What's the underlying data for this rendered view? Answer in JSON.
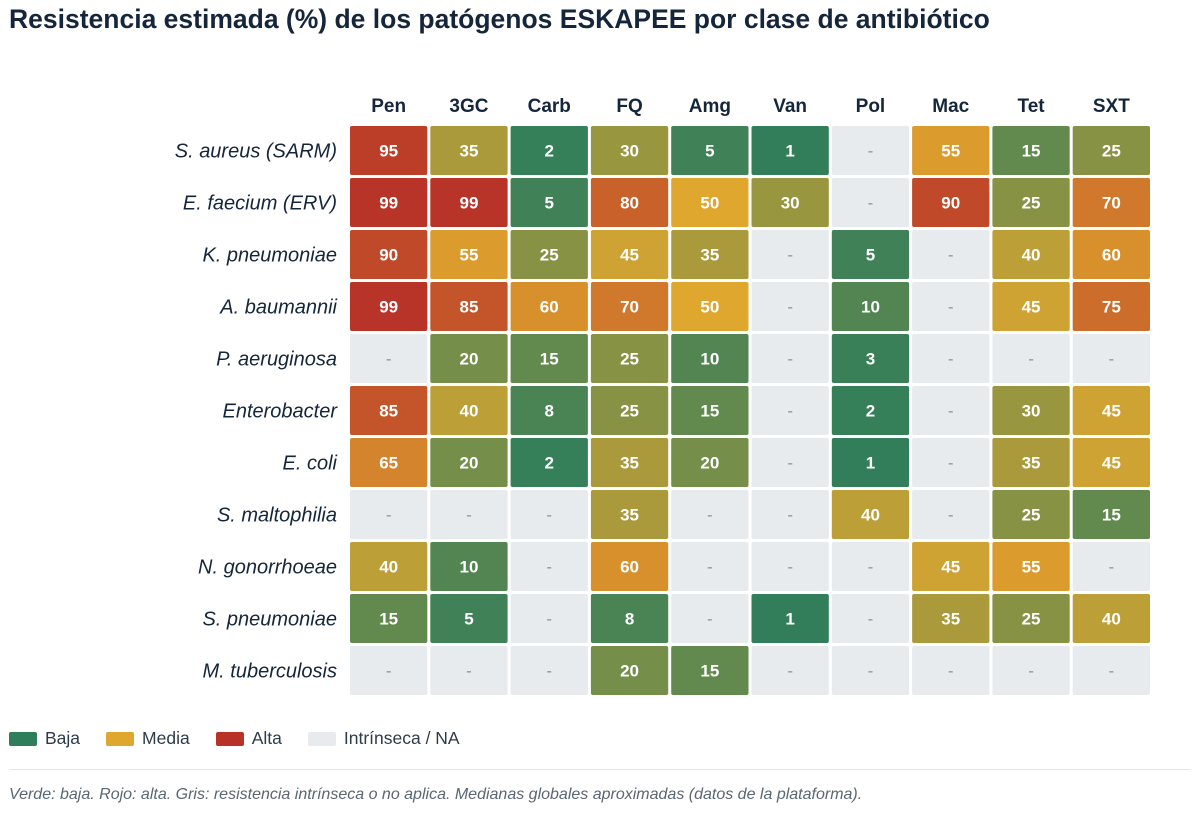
{
  "chart_data": {
    "type": "heatmap",
    "title": "Resistencia estimada (%) de los patógenos ESKAPEE por clase de antibiótico",
    "columns": [
      "Pen",
      "3GC",
      "Carb",
      "FQ",
      "Amg",
      "Van",
      "Pol",
      "Mac",
      "Tet",
      "SXT"
    ],
    "rows": [
      "S. aureus (SARM)",
      "E. faecium (ERV)",
      "K. pneumoniae",
      "A. baumannii",
      "P. aeruginosa",
      "Enterobacter",
      "E. coli",
      "S. maltophilia",
      "N. gonorrhoeae",
      "S. pneumoniae",
      "M. tuberculosis"
    ],
    "values": [
      [
        95,
        35,
        2,
        30,
        5,
        1,
        null,
        55,
        15,
        25
      ],
      [
        99,
        99,
        5,
        80,
        50,
        30,
        null,
        90,
        25,
        70
      ],
      [
        90,
        55,
        25,
        45,
        35,
        null,
        5,
        null,
        40,
        60
      ],
      [
        99,
        85,
        60,
        70,
        50,
        null,
        10,
        null,
        45,
        75
      ],
      [
        null,
        20,
        15,
        25,
        10,
        null,
        3,
        null,
        null,
        null
      ],
      [
        85,
        40,
        8,
        25,
        15,
        null,
        2,
        null,
        30,
        45
      ],
      [
        65,
        20,
        2,
        35,
        20,
        null,
        1,
        null,
        35,
        45
      ],
      [
        null,
        null,
        null,
        35,
        null,
        null,
        40,
        null,
        25,
        15
      ],
      [
        40,
        10,
        null,
        60,
        null,
        null,
        null,
        45,
        55,
        null
      ],
      [
        15,
        5,
        null,
        8,
        null,
        1,
        null,
        35,
        25,
        40
      ],
      [
        null,
        null,
        null,
        20,
        15,
        null,
        null,
        null,
        null,
        null
      ]
    ],
    "na_label": "-",
    "colors": {
      "low": "#2e7d5b",
      "mid": "#e0a72e",
      "high": "#b83228",
      "na": "#e8ebee"
    }
  },
  "legend": [
    {
      "label": "Baja",
      "color": "#2e7d5b"
    },
    {
      "label": "Media",
      "color": "#e0a72e"
    },
    {
      "label": "Alta",
      "color": "#b83228"
    },
    {
      "label": "Intrínseca / NA",
      "color": "#e8ebee"
    }
  ],
  "footnote": "Verde: baja. Rojo: alta. Gris: resistencia intrínseca o no aplica. Medianas globales aproximadas (datos de la plataforma)."
}
